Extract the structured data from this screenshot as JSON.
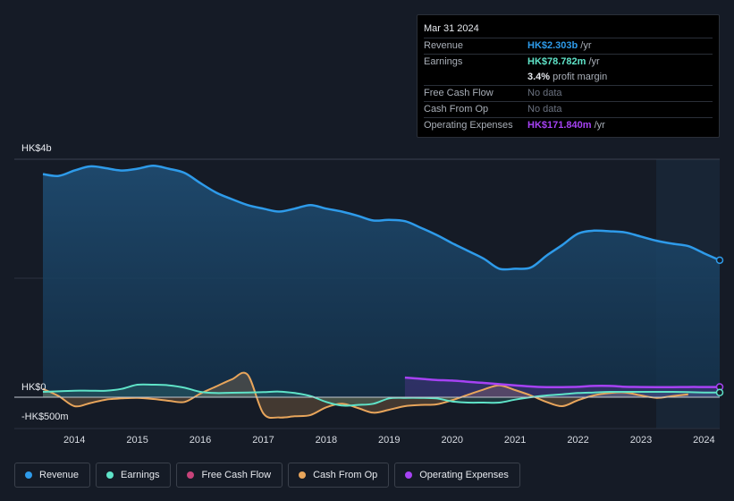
{
  "colors": {
    "revenue": "#2e9bea",
    "earnings": "#5fe3c8",
    "fcf": "#c7437a",
    "cfo": "#e8a55b",
    "opex": "#a642f4"
  },
  "tooltip": {
    "date": "Mar 31 2024",
    "rows": [
      {
        "key": "Revenue",
        "value": "HK$2.303b",
        "unit": "/yr"
      },
      {
        "key": "Earnings",
        "value": "HK$78.782m",
        "unit": "/yr"
      },
      {
        "key": "",
        "value": "3.4%",
        "unit": "profit margin"
      },
      {
        "key": "Free Cash Flow",
        "value": "No data"
      },
      {
        "key": "Cash From Op",
        "value": "No data"
      },
      {
        "key": "Operating Expenses",
        "value": "HK$171.840m",
        "unit": "/yr"
      }
    ]
  },
  "legend": [
    {
      "label": "Revenue"
    },
    {
      "label": "Earnings"
    },
    {
      "label": "Free Cash Flow"
    },
    {
      "label": "Cash From Op"
    },
    {
      "label": "Operating Expenses"
    }
  ],
  "chart_data": {
    "type": "area",
    "y_axis_labels": [
      "HK$4b",
      "HK$0",
      "-HK$500m"
    ],
    "ylim": [
      -500,
      4000
    ],
    "xlim": [
      2013.5,
      2024.25
    ],
    "x_ticks": [
      "2014",
      "2015",
      "2016",
      "2017",
      "2018",
      "2019",
      "2020",
      "2021",
      "2022",
      "2023",
      "2024"
    ],
    "units": "HK$ millions",
    "series": [
      {
        "name": "Revenue",
        "x": [
          2013.5,
          2013.75,
          2014.0,
          2014.25,
          2014.5,
          2014.75,
          2015.0,
          2015.25,
          2015.5,
          2015.75,
          2016.0,
          2016.25,
          2016.5,
          2016.75,
          2017.0,
          2017.25,
          2017.5,
          2017.75,
          2018.0,
          2018.25,
          2018.5,
          2018.75,
          2019.0,
          2019.25,
          2019.5,
          2019.75,
          2020.0,
          2020.25,
          2020.5,
          2020.75,
          2021.0,
          2021.25,
          2021.5,
          2021.75,
          2022.0,
          2022.25,
          2022.5,
          2022.75,
          2023.0,
          2023.25,
          2023.5,
          2023.75,
          2024.0,
          2024.25
        ],
        "values": [
          3750,
          3720,
          3810,
          3880,
          3850,
          3810,
          3840,
          3890,
          3840,
          3770,
          3600,
          3440,
          3330,
          3230,
          3170,
          3120,
          3170,
          3230,
          3170,
          3120,
          3050,
          2970,
          2980,
          2960,
          2850,
          2730,
          2590,
          2460,
          2330,
          2160,
          2160,
          2180,
          2380,
          2560,
          2750,
          2800,
          2790,
          2770,
          2700,
          2630,
          2580,
          2540,
          2420,
          2303
        ]
      },
      {
        "name": "Earnings",
        "x": [
          2013.5,
          2013.75,
          2014.0,
          2014.25,
          2014.5,
          2014.75,
          2015.0,
          2015.25,
          2015.5,
          2015.75,
          2016.0,
          2016.25,
          2016.5,
          2016.75,
          2017.0,
          2017.25,
          2017.5,
          2017.75,
          2018.0,
          2018.25,
          2018.5,
          2018.75,
          2019.0,
          2019.25,
          2019.5,
          2019.75,
          2020.0,
          2020.25,
          2020.5,
          2020.75,
          2021.0,
          2021.25,
          2021.5,
          2021.75,
          2022.0,
          2022.25,
          2022.5,
          2022.75,
          2023.0,
          2023.25,
          2023.5,
          2023.75,
          2024.0,
          2024.25
        ],
        "values": [
          90,
          100,
          110,
          110,
          110,
          140,
          210,
          210,
          200,
          160,
          90,
          70,
          75,
          80,
          85,
          95,
          70,
          20,
          -80,
          -140,
          -130,
          -110,
          -20,
          -10,
          -10,
          -20,
          -70,
          -90,
          -90,
          -90,
          -40,
          0,
          30,
          50,
          70,
          80,
          90,
          90,
          90,
          90,
          90,
          85,
          80,
          79
        ]
      },
      {
        "name": "Cash From Op",
        "x": [
          2013.5,
          2013.75,
          2014.0,
          2014.25,
          2014.5,
          2014.75,
          2015.0,
          2015.25,
          2015.5,
          2015.75,
          2016.0,
          2016.25,
          2016.5,
          2016.75,
          2017.0,
          2017.25,
          2017.5,
          2017.75,
          2018.0,
          2018.25,
          2018.5,
          2018.75,
          2019.0,
          2019.25,
          2019.5,
          2019.75,
          2020.0,
          2020.25,
          2020.5,
          2020.75,
          2021.0,
          2021.25,
          2021.5,
          2021.75,
          2022.0,
          2022.25,
          2022.5,
          2022.75,
          2023.0,
          2023.25,
          2023.5,
          2023.75
        ],
        "values": [
          140,
          20,
          -150,
          -100,
          -40,
          -20,
          -10,
          -30,
          -60,
          -80,
          60,
          180,
          300,
          380,
          -270,
          -340,
          -320,
          -300,
          -170,
          -110,
          -180,
          -260,
          -210,
          -150,
          -130,
          -120,
          -50,
          40,
          130,
          200,
          120,
          30,
          -80,
          -150,
          -50,
          30,
          70,
          80,
          30,
          -10,
          20,
          50
        ]
      },
      {
        "name": "Operating Expenses",
        "x": [
          2019.25,
          2019.5,
          2019.75,
          2020.0,
          2020.25,
          2020.5,
          2020.75,
          2021.0,
          2021.25,
          2021.5,
          2021.75,
          2022.0,
          2022.25,
          2022.5,
          2022.75,
          2023.0,
          2023.25,
          2023.5,
          2023.75,
          2024.0,
          2024.25
        ],
        "values": [
          330,
          310,
          290,
          280,
          260,
          240,
          220,
          200,
          180,
          170,
          170,
          175,
          190,
          190,
          175,
          172,
          170,
          170,
          172,
          172,
          172
        ]
      },
      {
        "name": "Free Cash Flow",
        "x": [],
        "values": []
      }
    ]
  }
}
